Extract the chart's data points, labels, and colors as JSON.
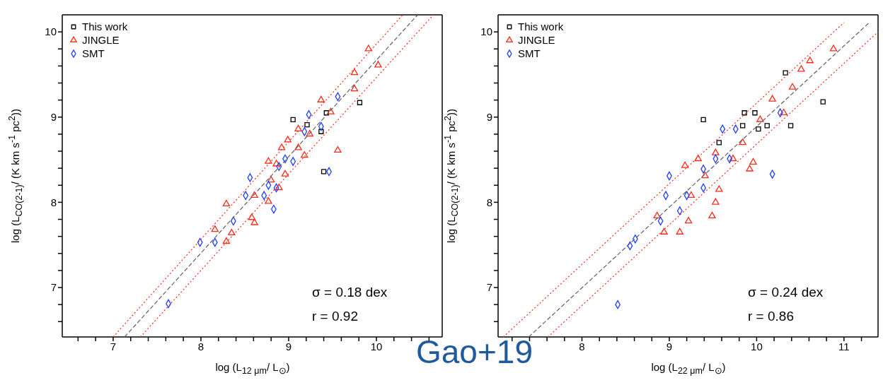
{
  "chart_data": [
    {
      "type": "scatter",
      "xlabel": "log (L$_{12 μm}$/ L$_{⊙}$)",
      "ylabel": "log (L$_{CO(2-1)}$/ (K km s$^{-1}$ pc$^{2}$))",
      "xlim": [
        6.42,
        10.75
      ],
      "ylim": [
        6.42,
        10.2
      ],
      "xticks": [
        {
          "value": 6.6,
          "label": null
        },
        {
          "value": 6.8,
          "label": null
        },
        7,
        {
          "value": 7.2,
          "label": null
        },
        {
          "value": 7.4,
          "label": null
        },
        {
          "value": 7.6,
          "label": null
        },
        {
          "value": 7.8,
          "label": null
        },
        8,
        {
          "value": 8.2,
          "label": null
        },
        {
          "value": 8.4,
          "label": null
        },
        {
          "value": 8.6,
          "label": null
        },
        {
          "value": 8.8,
          "label": null
        },
        9,
        {
          "value": 9.2,
          "label": null
        },
        {
          "value": 9.4,
          "label": null
        },
        {
          "value": 9.6,
          "label": null
        },
        {
          "value": 9.8,
          "label": null
        },
        10,
        {
          "value": 10.2,
          "label": null
        },
        {
          "value": 10.4,
          "label": null
        },
        {
          "value": 10.6,
          "label": null
        }
      ],
      "yticks": [
        {
          "value": 6.6,
          "label": null
        },
        {
          "value": 6.8,
          "label": null
        },
        7,
        {
          "value": 7.2,
          "label": null
        },
        {
          "value": 7.4,
          "label": null
        },
        {
          "value": 7.6,
          "label": null
        },
        {
          "value": 7.8,
          "label": null
        },
        8,
        {
          "value": 8.2,
          "label": null
        },
        {
          "value": 8.4,
          "label": null
        },
        {
          "value": 8.6,
          "label": null
        },
        {
          "value": 8.8,
          "label": null
        },
        9,
        {
          "value": 9.2,
          "label": null
        },
        {
          "value": 9.4,
          "label": null
        },
        {
          "value": 9.6,
          "label": null
        },
        {
          "value": 9.8,
          "label": null
        },
        10
      ],
      "legend": "top left",
      "grid": false,
      "series": [
        {
          "name": "This work",
          "color": "#000000",
          "marker": "square",
          "x": [
            9.05,
            9.4,
            9.81,
            9.43,
            9.37,
            9.21
          ],
          "values": [
            8.97,
            8.36,
            9.17,
            9.05,
            8.83,
            8.91
          ]
        },
        {
          "name": "JINGLE",
          "color": "#ff2a1a",
          "marker": "triangle",
          "x": [
            9.91,
            10.02,
            9.75,
            9.37,
            9.48,
            9.11,
            9.24,
            8.99,
            8.92,
            8.86,
            8.96,
            8.77,
            8.8,
            8.89,
            9.18,
            8.77,
            8.61,
            8.29,
            8.58,
            8.61,
            8.35,
            8.16,
            8.29,
            9.56,
            9.75,
            9.11
          ],
          "values": [
            9.8,
            9.61,
            9.52,
            9.2,
            9.06,
            8.86,
            8.8,
            8.73,
            8.64,
            8.45,
            8.33,
            8.48,
            8.26,
            8.17,
            8.55,
            8.01,
            8.08,
            7.98,
            7.82,
            7.76,
            7.64,
            7.68,
            7.54,
            8.61,
            9.33,
            8.64
          ]
        },
        {
          "name": "SMT",
          "color": "#1f3fff",
          "marker": "diamond",
          "x": [
            9.56,
            9.23,
            9.37,
            9.18,
            9.46,
            9.05,
            8.56,
            8.77,
            8.86,
            8.51,
            8.72,
            8.83,
            8.37,
            7.99,
            8.16,
            7.63,
            8.89,
            8.96
          ],
          "values": [
            9.24,
            9.03,
            8.89,
            8.83,
            8.36,
            8.48,
            8.29,
            8.2,
            8.17,
            8.08,
            8.08,
            7.92,
            7.78,
            7.53,
            7.53,
            6.81,
            8.42,
            8.51
          ]
        },
        {
          "type": "line",
          "color": "#606060",
          "line_style": "dashed",
          "x": [
            7.13,
            10.47
          ],
          "values": [
            6.42,
            10.2
          ]
        },
        {
          "type": "line",
          "color": "#ff2a1a",
          "line_style": "dotted",
          "x": [
            7.0,
            10.3
          ],
          "values": [
            6.42,
            10.2
          ]
        },
        {
          "type": "line",
          "color": "#ff2a1a",
          "line_style": "dotted",
          "x": [
            7.31,
            10.65
          ],
          "values": [
            6.42,
            10.2
          ]
        }
      ],
      "annotations": [
        "σ = 0.18 dex",
        "r = 0.92",
        "Gao+19"
      ]
    },
    {
      "type": "scatter",
      "xlabel": "log (L$_{22 μm}$/ L$_{⊙}$)",
      "ylabel": "log (L$_{CO(2-1)}$/ (K km s$^{-1}$ pc$^{2}$))",
      "xlim": [
        7.04,
        11.39
      ],
      "ylim": [
        6.42,
        10.2
      ],
      "xticks": [
        {
          "value": 7.2,
          "label": null
        },
        {
          "value": 7.4,
          "label": null
        },
        {
          "value": 7.6,
          "label": null
        },
        {
          "value": 7.8,
          "label": null
        },
        8,
        {
          "value": 8.2,
          "label": null
        },
        {
          "value": 8.4,
          "label": null
        },
        {
          "value": 8.6,
          "label": null
        },
        {
          "value": 8.8,
          "label": null
        },
        9,
        {
          "value": 9.2,
          "label": null
        },
        {
          "value": 9.4,
          "label": null
        },
        {
          "value": 9.6,
          "label": null
        },
        {
          "value": 9.8,
          "label": null
        },
        10,
        {
          "value": 10.2,
          "label": null
        },
        {
          "value": 10.4,
          "label": null
        },
        {
          "value": 10.6,
          "label": null
        },
        {
          "value": 10.8,
          "label": null
        },
        11,
        {
          "value": 11.2,
          "label": null
        }
      ],
      "yticks": [
        {
          "value": 6.6,
          "label": null
        },
        {
          "value": 6.8,
          "label": null
        },
        7,
        {
          "value": 7.2,
          "label": null
        },
        {
          "value": 7.4,
          "label": null
        },
        {
          "value": 7.6,
          "label": null
        },
        {
          "value": 7.8,
          "label": null
        },
        8,
        {
          "value": 8.2,
          "label": null
        },
        {
          "value": 8.4,
          "label": null
        },
        {
          "value": 8.6,
          "label": null
        },
        {
          "value": 8.8,
          "label": null
        },
        9,
        {
          "value": 9.2,
          "label": null
        },
        {
          "value": 9.4,
          "label": null
        },
        {
          "value": 9.6,
          "label": null
        },
        {
          "value": 9.8,
          "label": null
        },
        10
      ],
      "legend": "top left",
      "grid": false,
      "series": [
        {
          "name": "This work",
          "color": "#000000",
          "marker": "square",
          "x": [
            10.76,
            10.33,
            10.39,
            9.86,
            10.02,
            9.84,
            9.39,
            9.57,
            10.12,
            9.98
          ],
          "values": [
            9.18,
            9.52,
            8.9,
            9.05,
            8.86,
            8.9,
            8.97,
            8.7,
            8.9,
            9.05
          ]
        },
        {
          "name": "JINGLE",
          "color": "#ff2a1a",
          "marker": "triangle",
          "x": [
            10.88,
            10.61,
            10.51,
            10.41,
            10.18,
            10.31,
            10.04,
            9.84,
            9.96,
            9.73,
            9.53,
            9.33,
            9.18,
            9.41,
            9.25,
            9.53,
            9.49,
            9.22,
            8.86,
            8.94,
            9.12,
            9.57,
            9.92
          ],
          "values": [
            9.8,
            9.66,
            9.56,
            9.35,
            9.21,
            9.05,
            8.97,
            8.7,
            8.47,
            8.51,
            8.58,
            8.51,
            8.43,
            8.31,
            8.08,
            8.0,
            7.84,
            7.78,
            7.84,
            7.65,
            7.65,
            8.15,
            8.39
          ]
        },
        {
          "name": "SMT",
          "color": "#1f3fff",
          "marker": "diamond",
          "x": [
            10.18,
            9.0,
            8.96,
            9.2,
            9.12,
            8.9,
            8.61,
            8.55,
            8.41,
            9.39,
            9.53,
            9.61,
            9.76,
            10.27,
            9.39,
            9.69
          ],
          "values": [
            8.33,
            8.31,
            8.08,
            8.08,
            7.9,
            7.78,
            7.57,
            7.49,
            6.8,
            8.39,
            8.51,
            8.86,
            8.86,
            9.05,
            8.17,
            8.51
          ]
        },
        {
          "type": "line",
          "color": "#606060",
          "line_style": "dashed",
          "x": [
            7.39,
            11.29
          ],
          "values": [
            6.42,
            10.11
          ]
        },
        {
          "type": "line",
          "color": "#ff2a1a",
          "line_style": "dotted",
          "x": [
            7.1,
            11.0
          ],
          "values": [
            6.42,
            10.11
          ]
        },
        {
          "type": "line",
          "color": "#ff2a1a",
          "line_style": "dotted",
          "x": [
            7.61,
            11.39
          ],
          "values": [
            6.42,
            10.0
          ]
        }
      ],
      "annotations": [
        "σ = 0.24 dex",
        "r = 0.86"
      ]
    }
  ]
}
